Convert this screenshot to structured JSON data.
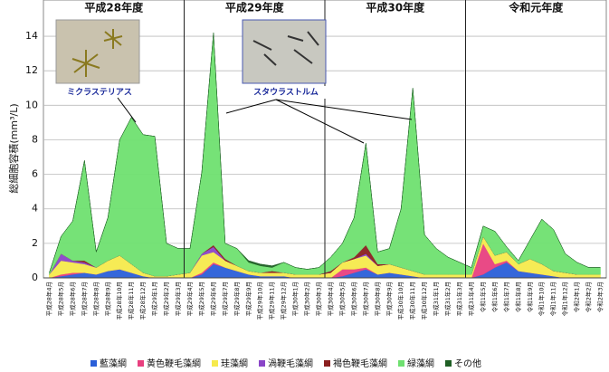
{
  "chart_data": {
    "type": "stacked-area",
    "y_label": "総細胞容積(mm³/L)",
    "periods": [
      "平成28年度",
      "平成29年度",
      "平成30年度",
      "令和元年度"
    ],
    "annotations": [
      "ミクラステリアス",
      "スタウラストルム"
    ],
    "categories": [
      "平成28年4月",
      "平成28年5月",
      "平成28年6月",
      "平成28年7月",
      "平成28年8月",
      "平成28年9月",
      "平成28年10月",
      "平成28年11月",
      "平成28年12月",
      "平成29年1月",
      "平成29年2月",
      "平成29年3月",
      "平成29年4月",
      "平成29年5月",
      "平成29年6月",
      "平成29年7月",
      "平成29年8月",
      "平成29年9月",
      "平成29年10月",
      "平成29年11月",
      "平成29年12月",
      "平成30年1月",
      "平成30年2月",
      "平成30年3月",
      "平成30年4月",
      "平成30年5月",
      "平成30年6月",
      "平成30年7月",
      "平成30年8月",
      "平成30年9月",
      "平成30年10月",
      "平成30年11月",
      "平成30年12月",
      "平成31年1月",
      "平成31年2月",
      "平成31年3月",
      "平成31年4月",
      "令和1年5月",
      "令和1年6月",
      "令和1年7月",
      "令和1年8月",
      "令和1年9月",
      "令和1年10月",
      "令和1年11月",
      "令和1年12月",
      "令和2年1月",
      "令和2年2月",
      "令和2年3月"
    ],
    "series": [
      {
        "name": "藍藻綱",
        "color": "#2a5fd8",
        "values": [
          0,
          0.1,
          0.2,
          0.3,
          0.2,
          0.4,
          0.5,
          0.3,
          0.1,
          0,
          0,
          0,
          0,
          0.2,
          0.8,
          0.6,
          0.4,
          0.2,
          0.1,
          0.1,
          0.1,
          0,
          0,
          0,
          0,
          0.1,
          0.3,
          0.5,
          0.2,
          0.3,
          0.2,
          0.1,
          0,
          0,
          0,
          0,
          0,
          0.2,
          0.6,
          0.9,
          0.4,
          0.3,
          0.2,
          0.1,
          0,
          0,
          0,
          0
        ]
      },
      {
        "name": "黄色鞭毛藻綱",
        "color": "#e8407f",
        "values": [
          0,
          0.1,
          0.1,
          0,
          0,
          0,
          0,
          0,
          0,
          0,
          0,
          0,
          0,
          0.1,
          0.1,
          0,
          0,
          0,
          0,
          0,
          0,
          0,
          0,
          0,
          0,
          0.4,
          0.2,
          0.1,
          0,
          0,
          0,
          0,
          0,
          0,
          0,
          0,
          0,
          1.8,
          0.2,
          0.1,
          0,
          0,
          0,
          0,
          0,
          0,
          0,
          0
        ]
      },
      {
        "name": "珪藻綱",
        "color": "#f6ea4c",
        "values": [
          0.2,
          0.8,
          0.6,
          0.5,
          0.4,
          0.6,
          0.8,
          0.5,
          0.2,
          0.1,
          0.1,
          0.2,
          0.3,
          1.0,
          0.6,
          0.4,
          0.3,
          0.2,
          0.2,
          0.2,
          0.2,
          0.2,
          0.2,
          0.2,
          0.3,
          0.4,
          0.6,
          0.7,
          0.5,
          0.5,
          0.4,
          0.3,
          0.2,
          0.2,
          0.2,
          0.2,
          0.2,
          0.4,
          0.5,
          0.5,
          0.4,
          0.8,
          0.6,
          0.3,
          0.3,
          0.2,
          0.2,
          0.2
        ]
      },
      {
        "name": "渦鞭毛藻綱",
        "color": "#8a45c8",
        "values": [
          0,
          0.4,
          0.1,
          0.1,
          0,
          0,
          0,
          0,
          0,
          0,
          0,
          0,
          0,
          0.1,
          0.3,
          0,
          0,
          0,
          0,
          0,
          0,
          0,
          0,
          0,
          0,
          0,
          0,
          0.1,
          0,
          0,
          0,
          0,
          0,
          0,
          0,
          0,
          0,
          0,
          0,
          0,
          0,
          0,
          0,
          0,
          0,
          0,
          0,
          0
        ]
      },
      {
        "name": "褐色鞭毛藻綱",
        "color": "#8b1f1f",
        "values": [
          0,
          0,
          0,
          0.1,
          0,
          0,
          0,
          0,
          0,
          0,
          0,
          0,
          0,
          0,
          0.1,
          0.1,
          0,
          0,
          0,
          0.1,
          0,
          0,
          0,
          0,
          0.1,
          0,
          0.1,
          0.5,
          0.1,
          0,
          0,
          0,
          0,
          0,
          0,
          0,
          0,
          0,
          0,
          0,
          0,
          0,
          0,
          0,
          0,
          0,
          0,
          0
        ]
      },
      {
        "name": "緑藻綱",
        "color": "#6fe070",
        "values": [
          0.1,
          1.0,
          2.3,
          5.8,
          0.9,
          2.5,
          6.7,
          8.5,
          8.0,
          8.1,
          1.9,
          1.5,
          1.4,
          4.7,
          12.3,
          0.9,
          1.0,
          0.5,
          0.4,
          0.2,
          0.6,
          0.4,
          0.3,
          0.4,
          0.8,
          1.1,
          2.3,
          5.9,
          0.7,
          0.9,
          3.4,
          10.6,
          2.3,
          1.5,
          1.0,
          0.7,
          0.4,
          0.6,
          1.4,
          0.3,
          0.2,
          1.1,
          2.6,
          2.4,
          1.1,
          0.7,
          0.4,
          0.4
        ]
      },
      {
        "name": "その他",
        "color": "#1f5f25",
        "values": [
          0,
          0,
          0,
          0,
          0,
          0,
          0,
          0,
          0,
          0,
          0,
          0,
          0,
          0,
          0,
          0,
          0,
          0.1,
          0.1,
          0.1,
          0,
          0,
          0,
          0,
          0,
          0,
          0,
          0,
          0,
          0,
          0,
          0,
          0,
          0,
          0,
          0,
          0,
          0,
          0,
          0,
          0,
          0,
          0,
          0,
          0,
          0,
          0,
          0
        ]
      }
    ],
    "ylim": [
      0,
      15
    ],
    "yticks": [
      0,
      2,
      4,
      6,
      8,
      10,
      12,
      14
    ],
    "grid": true
  }
}
